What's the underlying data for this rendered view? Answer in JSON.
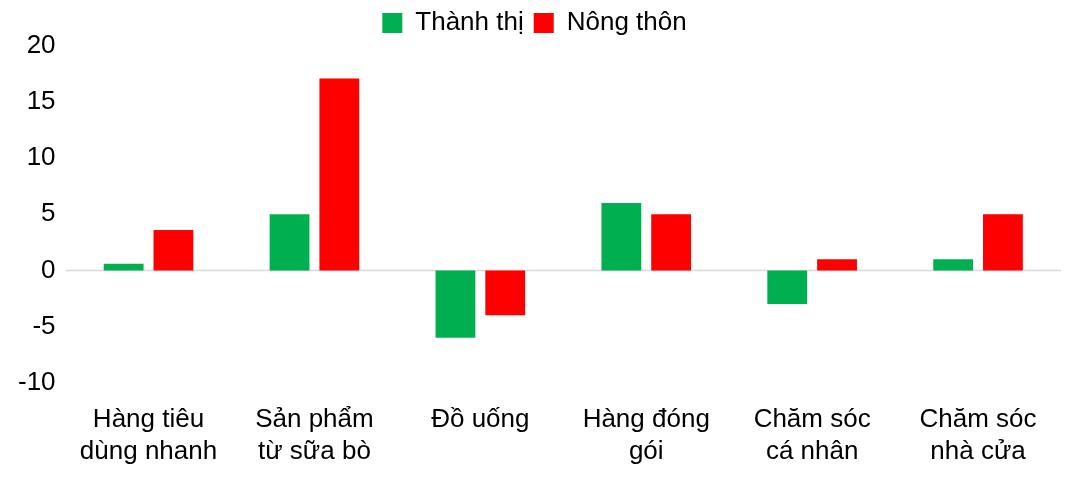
{
  "chart_data": {
    "type": "bar",
    "categories": [
      "Hàng tiêu dùng nhanh",
      "Sản phẩm từ sữa bò",
      "Đồ uống",
      "Hàng đóng gói",
      "Chăm sóc cá nhân",
      "Chăm sóc nhà cửa"
    ],
    "series": [
      {
        "name": "Thành thị",
        "color": "#00b050",
        "values": [
          0.6,
          5,
          -6,
          6,
          -3,
          1
        ]
      },
      {
        "name": "Nông thôn",
        "color": "#ff0000",
        "values": [
          3.6,
          17.1,
          -4,
          5,
          1,
          5
        ]
      }
    ],
    "ylim": [
      -10,
      20
    ],
    "yticks": [
      -10,
      -5,
      0,
      5,
      10,
      15,
      20
    ],
    "legend": "top"
  }
}
